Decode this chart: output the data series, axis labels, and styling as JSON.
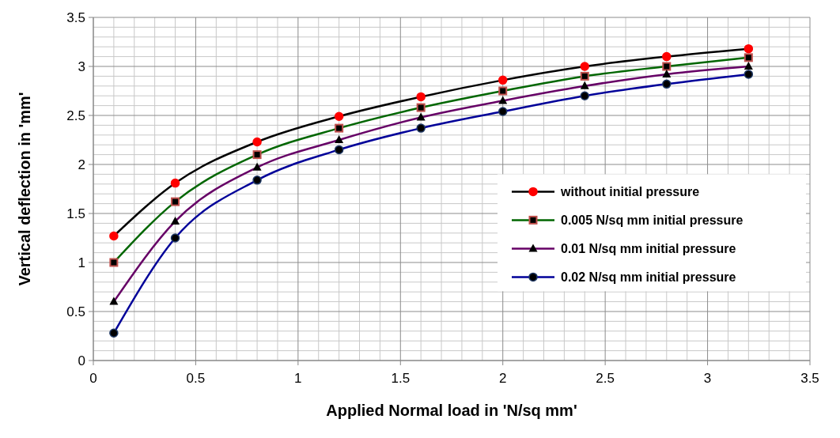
{
  "chart_data": {
    "type": "line",
    "xlabel": "Applied  Normal  load  in 'N/sq mm'",
    "ylabel": "Vertical deflection in 'mm'",
    "x": [
      0.1,
      0.4,
      0.8,
      1.2,
      1.6,
      2.0,
      2.4,
      2.8,
      3.2
    ],
    "series": [
      {
        "name": "without initial pressure",
        "color": "#000000",
        "marker": "circle",
        "values": [
          1.27,
          1.81,
          2.23,
          2.49,
          2.69,
          2.86,
          3.0,
          3.1,
          3.18
        ]
      },
      {
        "name": "0.005 N/sq mm initial pressure",
        "color": "#006600",
        "marker": "square",
        "values": [
          1.0,
          1.62,
          2.1,
          2.37,
          2.58,
          2.75,
          2.9,
          3.0,
          3.09
        ]
      },
      {
        "name": "0.01 N/sq mm initial pressure",
        "color": "#660066",
        "marker": "triangle",
        "values": [
          0.6,
          1.42,
          1.97,
          2.25,
          2.48,
          2.65,
          2.8,
          2.92,
          3.0
        ]
      },
      {
        "name": "0.02 N/sq mm initial pressure",
        "color": "#000099",
        "marker": "circle",
        "values": [
          0.28,
          1.25,
          1.84,
          2.15,
          2.37,
          2.54,
          2.7,
          2.82,
          2.92
        ]
      }
    ],
    "xlim": [
      0,
      3.5
    ],
    "xticks": [
      0,
      0.5,
      1,
      1.5,
      2,
      2.5,
      3,
      3.5
    ],
    "ylim": [
      0,
      3.5
    ],
    "yticks": [
      0,
      0.5,
      1,
      1.5,
      2,
      2.5,
      3,
      3.5
    ],
    "grid": true,
    "legend": "right",
    "line_style": "solid"
  }
}
